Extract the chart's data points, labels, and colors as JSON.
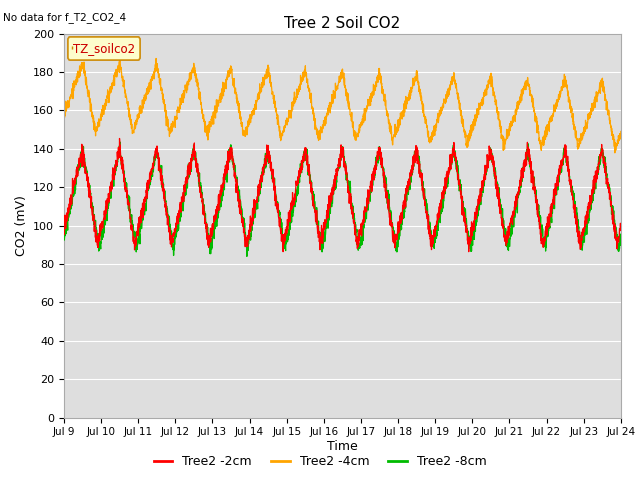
{
  "title": "Tree 2 Soil CO2",
  "subtitle": "No data for f_T2_CO2_4",
  "ylabel": "CO2 (mV)",
  "xlabel": "Time",
  "ylim": [
    0,
    200
  ],
  "yticks": [
    0,
    20,
    40,
    60,
    80,
    100,
    120,
    140,
    160,
    180,
    200
  ],
  "legend_label": "TZ_soilco2",
  "series": {
    "Tree2 -2cm": {
      "color": "#ff0000"
    },
    "Tree2 -4cm": {
      "color": "#ffa500"
    },
    "Tree2 -8cm": {
      "color": "#00bb00"
    }
  },
  "x_tick_labels": [
    "Jul 9",
    "Jul 10",
    "Jul 11",
    "Jul 12",
    "Jul 13",
    "Jul 14",
    "Jul 15",
    "Jul 16",
    "Jul 17",
    "Jul 18",
    "Jul 19",
    "Jul 20",
    "Jul 21",
    "Jul 22",
    "Jul 23",
    "Jul 24"
  ],
  "plot_bg_color": "#dedede"
}
